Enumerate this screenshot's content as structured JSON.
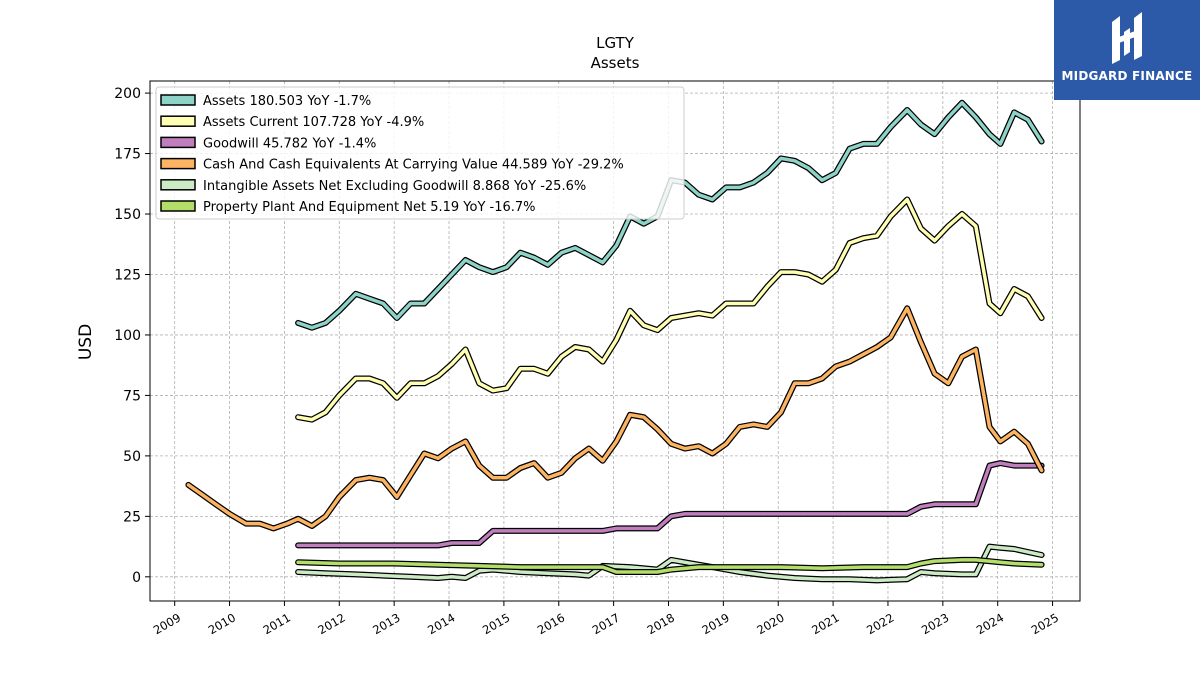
{
  "brand": {
    "name": "MIDGARD FINANCE"
  },
  "chart_data": {
    "type": "line",
    "title": "LGTY",
    "subtitle": "Assets",
    "xlabel": "",
    "ylabel": "USD",
    "xlim": [
      2008.55,
      2025.5
    ],
    "ylim": [
      -10,
      205
    ],
    "yticks": [
      0,
      25,
      50,
      75,
      100,
      125,
      150,
      175,
      200
    ],
    "xticks": [
      2009,
      2010,
      2011,
      2012,
      2013,
      2014,
      2015,
      2016,
      2017,
      2018,
      2019,
      2020,
      2021,
      2022,
      2023,
      2024,
      2025
    ],
    "grid": true,
    "legend_position": "top-left",
    "series": [
      {
        "name": "Assets",
        "legend": "Assets  180.503 YoY -1.7%",
        "color": "#8dd3c7",
        "points": [
          [
            2011.25,
            105
          ],
          [
            2011.5,
            103
          ],
          [
            2011.75,
            105
          ],
          [
            2012.0,
            110
          ],
          [
            2012.3,
            117
          ],
          [
            2012.55,
            115
          ],
          [
            2012.8,
            113
          ],
          [
            2013.05,
            107
          ],
          [
            2013.3,
            113
          ],
          [
            2013.55,
            113
          ],
          [
            2013.8,
            119
          ],
          [
            2014.05,
            125
          ],
          [
            2014.3,
            131
          ],
          [
            2014.55,
            128
          ],
          [
            2014.8,
            126
          ],
          [
            2015.05,
            128
          ],
          [
            2015.3,
            134
          ],
          [
            2015.55,
            132
          ],
          [
            2015.8,
            129
          ],
          [
            2016.05,
            134
          ],
          [
            2016.3,
            136
          ],
          [
            2016.55,
            133
          ],
          [
            2016.8,
            130
          ],
          [
            2017.05,
            137
          ],
          [
            2017.3,
            149
          ],
          [
            2017.55,
            146
          ],
          [
            2017.8,
            149
          ],
          [
            2018.05,
            164
          ],
          [
            2018.3,
            163
          ],
          [
            2018.55,
            158
          ],
          [
            2018.8,
            156
          ],
          [
            2019.05,
            161
          ],
          [
            2019.3,
            161
          ],
          [
            2019.55,
            163
          ],
          [
            2019.8,
            167
          ],
          [
            2020.05,
            173
          ],
          [
            2020.3,
            172
          ],
          [
            2020.55,
            169
          ],
          [
            2020.8,
            164
          ],
          [
            2021.05,
            167
          ],
          [
            2021.3,
            177
          ],
          [
            2021.55,
            179
          ],
          [
            2021.8,
            179
          ],
          [
            2022.05,
            186
          ],
          [
            2022.35,
            193
          ],
          [
            2022.6,
            187
          ],
          [
            2022.85,
            183
          ],
          [
            2023.1,
            190
          ],
          [
            2023.35,
            196
          ],
          [
            2023.6,
            190
          ],
          [
            2023.85,
            183
          ],
          [
            2024.05,
            179
          ],
          [
            2024.3,
            192
          ],
          [
            2024.55,
            189
          ],
          [
            2024.8,
            180
          ]
        ]
      },
      {
        "name": "Assets Current",
        "legend": "Assets Current  107.728 YoY -4.9%",
        "color": "#ffffb3",
        "points": [
          [
            2011.25,
            66
          ],
          [
            2011.5,
            65
          ],
          [
            2011.75,
            68
          ],
          [
            2012.0,
            75
          ],
          [
            2012.3,
            82
          ],
          [
            2012.55,
            82
          ],
          [
            2012.8,
            80
          ],
          [
            2013.05,
            74
          ],
          [
            2013.3,
            80
          ],
          [
            2013.55,
            80
          ],
          [
            2013.8,
            83
          ],
          [
            2014.05,
            88
          ],
          [
            2014.3,
            94
          ],
          [
            2014.55,
            80
          ],
          [
            2014.8,
            77
          ],
          [
            2015.05,
            78
          ],
          [
            2015.3,
            86
          ],
          [
            2015.55,
            86
          ],
          [
            2015.8,
            84
          ],
          [
            2016.05,
            91
          ],
          [
            2016.3,
            95
          ],
          [
            2016.55,
            94
          ],
          [
            2016.8,
            89
          ],
          [
            2017.05,
            98
          ],
          [
            2017.3,
            110
          ],
          [
            2017.55,
            104
          ],
          [
            2017.8,
            102
          ],
          [
            2018.05,
            107
          ],
          [
            2018.3,
            108
          ],
          [
            2018.55,
            109
          ],
          [
            2018.8,
            108
          ],
          [
            2019.05,
            113
          ],
          [
            2019.3,
            113
          ],
          [
            2019.55,
            113
          ],
          [
            2019.8,
            120
          ],
          [
            2020.05,
            126
          ],
          [
            2020.3,
            126
          ],
          [
            2020.55,
            125
          ],
          [
            2020.8,
            122
          ],
          [
            2021.05,
            127
          ],
          [
            2021.3,
            138
          ],
          [
            2021.55,
            140
          ],
          [
            2021.8,
            141
          ],
          [
            2022.05,
            149
          ],
          [
            2022.35,
            156
          ],
          [
            2022.6,
            144
          ],
          [
            2022.85,
            139
          ],
          [
            2023.1,
            145
          ],
          [
            2023.35,
            150
          ],
          [
            2023.6,
            145
          ],
          [
            2023.85,
            113
          ],
          [
            2024.05,
            109
          ],
          [
            2024.3,
            119
          ],
          [
            2024.55,
            116
          ],
          [
            2024.8,
            107
          ]
        ]
      },
      {
        "name": "Goodwill",
        "legend": "Goodwill  45.782 YoY -1.4%",
        "color": "#bf7fbf",
        "points": [
          [
            2011.25,
            13
          ],
          [
            2012.0,
            13
          ],
          [
            2013.0,
            13
          ],
          [
            2013.8,
            13
          ],
          [
            2014.05,
            14
          ],
          [
            2014.55,
            14
          ],
          [
            2014.8,
            19
          ],
          [
            2015.5,
            19
          ],
          [
            2016.5,
            19
          ],
          [
            2016.8,
            19
          ],
          [
            2017.05,
            20
          ],
          [
            2017.8,
            20
          ],
          [
            2018.05,
            25
          ],
          [
            2018.3,
            26
          ],
          [
            2019.0,
            26
          ],
          [
            2020.0,
            26
          ],
          [
            2021.0,
            26
          ],
          [
            2022.0,
            26
          ],
          [
            2022.35,
            26
          ],
          [
            2022.6,
            29
          ],
          [
            2022.85,
            30
          ],
          [
            2023.6,
            30
          ],
          [
            2023.85,
            46
          ],
          [
            2024.05,
            47
          ],
          [
            2024.3,
            46
          ],
          [
            2024.8,
            46
          ]
        ]
      },
      {
        "name": "Cash And Cash Equivalents At Carrying Value",
        "legend": "Cash And Cash Equivalents At Carrying Value  44.589 YoY -29.2%",
        "color": "#fdb462",
        "points": [
          [
            2009.25,
            38
          ],
          [
            2009.5,
            34
          ],
          [
            2009.75,
            30
          ],
          [
            2010.0,
            26
          ],
          [
            2010.3,
            22
          ],
          [
            2010.55,
            22
          ],
          [
            2010.8,
            20
          ],
          [
            2011.05,
            22
          ],
          [
            2011.25,
            24
          ],
          [
            2011.5,
            21
          ],
          [
            2011.75,
            25
          ],
          [
            2012.0,
            33
          ],
          [
            2012.3,
            40
          ],
          [
            2012.55,
            41
          ],
          [
            2012.8,
            40
          ],
          [
            2013.05,
            33
          ],
          [
            2013.3,
            42
          ],
          [
            2013.55,
            51
          ],
          [
            2013.8,
            49
          ],
          [
            2014.05,
            53
          ],
          [
            2014.3,
            56
          ],
          [
            2014.55,
            46
          ],
          [
            2014.8,
            41
          ],
          [
            2015.05,
            41
          ],
          [
            2015.3,
            45
          ],
          [
            2015.55,
            47
          ],
          [
            2015.8,
            41
          ],
          [
            2016.05,
            43
          ],
          [
            2016.3,
            49
          ],
          [
            2016.55,
            53
          ],
          [
            2016.8,
            48
          ],
          [
            2017.05,
            56
          ],
          [
            2017.3,
            67
          ],
          [
            2017.55,
            66
          ],
          [
            2017.8,
            61
          ],
          [
            2018.05,
            55
          ],
          [
            2018.3,
            53
          ],
          [
            2018.55,
            54
          ],
          [
            2018.8,
            51
          ],
          [
            2019.05,
            55
          ],
          [
            2019.3,
            62
          ],
          [
            2019.55,
            63
          ],
          [
            2019.8,
            62
          ],
          [
            2020.05,
            68
          ],
          [
            2020.3,
            80
          ],
          [
            2020.55,
            80
          ],
          [
            2020.8,
            82
          ],
          [
            2021.05,
            87
          ],
          [
            2021.3,
            89
          ],
          [
            2021.55,
            92
          ],
          [
            2021.8,
            95
          ],
          [
            2022.05,
            99
          ],
          [
            2022.35,
            111
          ],
          [
            2022.6,
            97
          ],
          [
            2022.85,
            84
          ],
          [
            2023.1,
            80
          ],
          [
            2023.35,
            91
          ],
          [
            2023.6,
            94
          ],
          [
            2023.85,
            62
          ],
          [
            2024.05,
            56
          ],
          [
            2024.3,
            60
          ],
          [
            2024.55,
            55
          ],
          [
            2024.8,
            44
          ]
        ]
      },
      {
        "name": "Intangible Assets Net Excluding Goodwill",
        "legend": "Intangible Assets Net Excluding Goodwill  8.868 YoY -25.6%",
        "color": "#ccebc5",
        "points": [
          [
            2011.25,
            2
          ],
          [
            2011.75,
            1.5
          ],
          [
            2012.3,
            1
          ],
          [
            2012.8,
            0.5
          ],
          [
            2013.3,
            0
          ],
          [
            2013.8,
            -0.5
          ],
          [
            2014.05,
            0
          ],
          [
            2014.3,
            -0.5
          ],
          [
            2014.55,
            2.5
          ],
          [
            2014.8,
            3
          ],
          [
            2015.3,
            2
          ],
          [
            2015.8,
            1.5
          ],
          [
            2016.3,
            1
          ],
          [
            2016.55,
            0.5
          ],
          [
            2016.8,
            4.5
          ],
          [
            2017.3,
            4
          ],
          [
            2017.8,
            3
          ],
          [
            2018.05,
            7
          ],
          [
            2018.3,
            6
          ],
          [
            2018.8,
            4
          ],
          [
            2019.3,
            2
          ],
          [
            2019.8,
            0.5
          ],
          [
            2020.3,
            -0.5
          ],
          [
            2020.8,
            -1
          ],
          [
            2021.3,
            -1
          ],
          [
            2021.8,
            -1.5
          ],
          [
            2022.35,
            -1
          ],
          [
            2022.6,
            2
          ],
          [
            2022.85,
            1.5
          ],
          [
            2023.35,
            1
          ],
          [
            2023.6,
            1
          ],
          [
            2023.85,
            12.5
          ],
          [
            2024.05,
            12
          ],
          [
            2024.3,
            11.5
          ],
          [
            2024.8,
            9
          ]
        ]
      },
      {
        "name": "Property Plant And Equipment Net",
        "legend": "Property Plant And Equipment Net  5.19 YoY -16.7%",
        "color": "#b3de69",
        "points": [
          [
            2011.25,
            6
          ],
          [
            2012.0,
            5.5
          ],
          [
            2013.0,
            5.5
          ],
          [
            2013.8,
            5
          ],
          [
            2014.55,
            4.5
          ],
          [
            2015.3,
            4
          ],
          [
            2016.05,
            4
          ],
          [
            2016.8,
            4
          ],
          [
            2017.05,
            2
          ],
          [
            2017.8,
            2
          ],
          [
            2018.05,
            3
          ],
          [
            2018.55,
            4
          ],
          [
            2019.05,
            4
          ],
          [
            2020.05,
            4
          ],
          [
            2020.8,
            3.5
          ],
          [
            2021.55,
            4
          ],
          [
            2022.35,
            4
          ],
          [
            2022.6,
            5.5
          ],
          [
            2022.85,
            6.5
          ],
          [
            2023.35,
            7
          ],
          [
            2023.6,
            7
          ],
          [
            2024.05,
            6
          ],
          [
            2024.3,
            5.5
          ],
          [
            2024.8,
            5
          ]
        ]
      }
    ]
  }
}
